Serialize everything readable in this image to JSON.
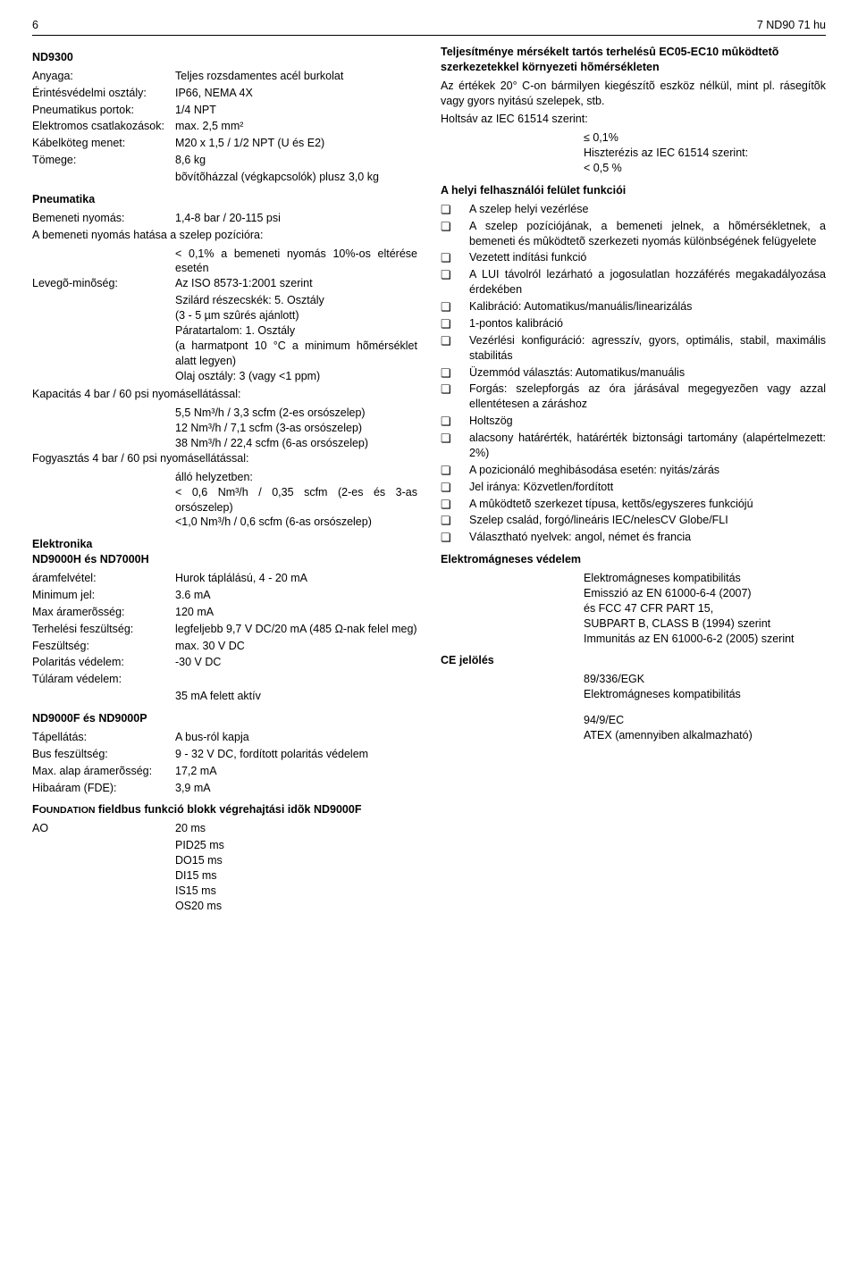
{
  "header": {
    "page": "6",
    "doc": "7 ND90 71 hu"
  },
  "left": {
    "model": "ND9300",
    "specs1": [
      {
        "label": "Anyaga:",
        "value": "Teljes rozsdamentes acél burkolat"
      },
      {
        "label": "Érintésvédelmi osztály:",
        "value": "IP66, NEMA 4X"
      },
      {
        "label": "Pneumatikus portok:",
        "value": "1/4 NPT"
      },
      {
        "label": "Elektromos csatlakozások:",
        "value": "max. 2,5 mm²"
      },
      {
        "label": "Kábelköteg menet:",
        "value": "M20 x 1,5 / 1/2 NPT (U és E2)"
      },
      {
        "label": "Tömege:",
        "value": "8,6 kg"
      }
    ],
    "specs1_extra": "bõvítõházzal (végkapcsolók) plusz 3,0 kg",
    "pneumatika_hdg": "Pneumatika",
    "pneumatika_rows": [
      {
        "label": "Bemeneti nyomás:",
        "value": "1,4-8 bar / 20-115 psi"
      }
    ],
    "pneumatika_para1_label": "A bemeneti nyomás hatása a szelep pozícióra:",
    "pneumatika_para1_val": "< 0,1% a bemeneti nyomás 10%-os eltérése esetén",
    "levego_label": "Levegõ-minõség:",
    "levego_val1": "Az ISO 8573-1:2001 szerint",
    "levego_val2": "Szilárd részecskék: 5. Osztály",
    "levego_val3": "(3 - 5 µm szûrés ajánlott)",
    "levego_val4": "Páratartalom: 1. Osztály",
    "levego_val5": "(a harmatpont 10 °C a minimum hõmérséklet alatt legyen)",
    "levego_val6": "Olaj osztály: 3 (vagy <1 ppm)",
    "kapacitas_label": "Kapacitás 4 bar / 60 psi nyomásellátással:",
    "kapacitas_vals": [
      "5,5 Nm³/h / 3,3 scfm (2-es orsószelep)",
      "12 Nm³/h / 7,1 scfm (3-as orsószelep)",
      "38 Nm³/h / 22,4 scfm (6-as orsószelep)"
    ],
    "fogyasztas_label": "Fogyasztás 4 bar / 60 psi nyomásellátással:",
    "fogyasztas_vals": [
      "álló helyzetben:",
      "< 0,6 Nm³/h / 0,35 scfm (2-es és 3-as orsószelep)",
      "<1,0 Nm³/h / 0,6 scfm (6-as orsószelep)"
    ],
    "elektronika_hdg": "Elektronika",
    "group1_hdg": "ND9000H és ND7000H",
    "group1_rows": [
      {
        "label": "áramfelvétel:",
        "value": "Hurok táplálású, 4 - 20 mA"
      },
      {
        "label": "Minimum jel:",
        "value": "3.6 mA"
      },
      {
        "label": "Max áramerõsség:",
        "value": "120 mA"
      },
      {
        "label": "Terhelési feszültség:",
        "value": "legfeljebb 9,7 V DC/20 mA (485 Ω-nak felel meg)"
      },
      {
        "label": "Feszültség:",
        "value": "max. 30 V DC"
      },
      {
        "label": "Polaritás védelem:",
        "value": "-30 V DC"
      },
      {
        "label": "Túláram védelem:",
        "value": ""
      }
    ],
    "group1_extra": "35 mA felett aktív",
    "group2_hdg": "ND9000F és ND9000P",
    "group2_rows": [
      {
        "label": "Tápellátás:",
        "value": "A bus-ról kapja"
      },
      {
        "label": "Bus feszültség:",
        "value": "9 - 32 V DC, fordított polaritás védelem"
      },
      {
        "label": "Max. alap áramerõsség:",
        "value": "17,2 mA"
      },
      {
        "label": "Hibaáram (FDE):",
        "value": "3,9 mA"
      }
    ],
    "fb_hdg_pre": "F",
    "fb_hdg_sc": "OUNDATION",
    "fb_hdg_post": " fieldbus funkció blokk végrehajtási idõk ND9000F",
    "fb_rows": [
      {
        "label": "AO",
        "value": "20 ms"
      }
    ],
    "fb_extra": [
      "PID25 ms",
      "DO15 ms",
      "DI15 ms",
      "IS15 ms",
      "OS20 ms"
    ]
  },
  "right": {
    "perf_hdg": "Teljesítménye mérsékelt tartós terhelésû EC05-EC10 mûködtetõ szerkezetekkel környezeti hõmérsékleten",
    "perf_para": "Az értékek 20° C-on bármilyen kiegészítõ eszköz nélkül, mint pl. rásegítõk vagy gyors nyitású szelepek, stb.",
    "holtsav_line": "Holtsáv az IEC 61514 szerint:",
    "holtsav_val": "≤ 0,1%",
    "hist_line": "Hiszterézis az IEC 61514 szerint:",
    "hist_val": "< 0,5 %",
    "lui_hdg": "A helyi felhasználói felület funkciói",
    "lui_items": [
      "A szelep helyi vezérlése",
      "A szelep pozíciójának, a bemeneti jelnek, a hõmérsékletnek, a bemeneti és mûködtetõ szerkezeti nyomás különbségének felügyelete",
      "Vezetett indítási funkció",
      "A LUI távolról lezárható a jogosulatlan hozzáférés megakadályozása érdekében",
      "Kalibráció: Automatikus/manuális/linearizálás",
      "1-pontos kalibráció",
      "Vezérlési konfiguráció: agresszív, gyors, optimális, stabil, maximális stabilitás",
      "Üzemmód választás: Automatikus/manuális",
      "Forgás: szelepforgás az óra járásával megegyezõen vagy azzal ellentétesen a záráshoz",
      "Holtszög",
      "alacsony határérték, határérték biztonsági tartomány (alapértelmezett: 2%)",
      "A pozicionáló meghibásodása esetén: nyitás/zárás",
      "Jel iránya: Közvetlen/fordított",
      "A mûködtetõ szerkezet típusa, kettõs/egyszeres funkciójú",
      "Szelep család, forgó/lineáris IEC/nelesCV Globe/FLI",
      "Választható nyelvek: angol, német és francia"
    ],
    "emc_hdg": "Elektromágneses védelem",
    "emc_vals": [
      "Elektromágneses kompatibilitás",
      "Emisszió az EN 61000-6-4 (2007)",
      "és FCC 47 CFR PART 15,",
      "SUBPART B, CLASS B (1994) szerint",
      "Immunitás az EN 61000-6-2 (2005) szerint"
    ],
    "ce_hdg": "CE jelölés",
    "ce_block1": [
      "89/336/EGK",
      "Elektromágneses kompatibilitás"
    ],
    "ce_block2": [
      "94/9/EC",
      "ATEX (amennyiben alkalmazható)"
    ]
  }
}
